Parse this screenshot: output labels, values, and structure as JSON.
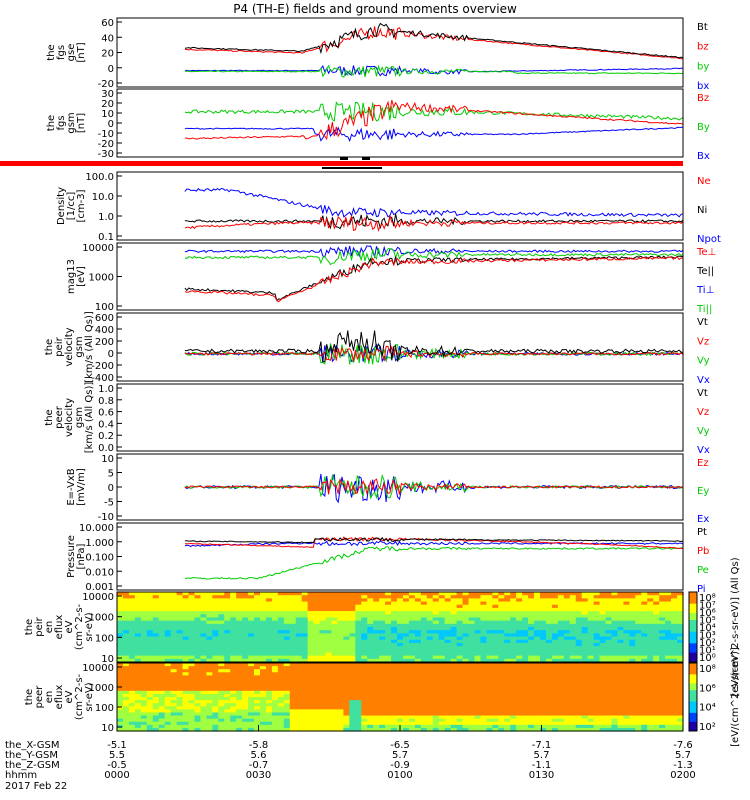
{
  "title": "P4 (TH-E) fields and ground moments overview",
  "date": "2017 Feb 22",
  "panels": [
    {
      "id": "fgs_mag",
      "ylabel": [
        "the",
        "fgs",
        "gse",
        "[nT]"
      ],
      "ticks": [
        "60",
        "40",
        "20",
        "0",
        "-20"
      ],
      "ylim": [
        -20,
        60
      ],
      "legend": [
        {
          "name": "Bt",
          "color": "#000000"
        },
        {
          "name": "bz",
          "color": "#ff0000"
        },
        {
          "name": "by",
          "color": "#00cc00"
        },
        {
          "name": "bx",
          "color": "#0000ff"
        }
      ]
    },
    {
      "id": "fgs_gsm",
      "ylabel": [
        "the",
        "fgs",
        "gsm",
        "[nT]"
      ],
      "ticks": [
        "30",
        "20",
        "10",
        "0",
        "-10",
        "-20",
        "-30"
      ],
      "ylim": [
        -30,
        30
      ],
      "legend": [
        {
          "name": "Bz",
          "color": "#ff0000"
        },
        {
          "name": "By",
          "color": "#00cc00"
        },
        {
          "name": "Bx",
          "color": "#0000ff"
        }
      ]
    },
    {
      "id": "density",
      "ylabel": [
        "Density",
        "[1/cc]",
        "[cm-3]"
      ],
      "ticks": [
        "100.0",
        "10.0",
        "1.0",
        "0.1"
      ],
      "log": true,
      "legend": [
        {
          "name": "Ne",
          "color": "#ff0000"
        },
        {
          "name": "Ni",
          "color": "#000000"
        },
        {
          "name": "Npot",
          "color": "#0000ff"
        }
      ]
    },
    {
      "id": "temp",
      "ylabel": [
        "mag13",
        "[eV]"
      ],
      "ticks": [
        "10000",
        "1000",
        "100"
      ],
      "log": true,
      "legend": [
        {
          "name": "Te⊥",
          "color": "#ff0000"
        },
        {
          "name": "Te||",
          "color": "#000000"
        },
        {
          "name": "Ti⊥",
          "color": "#0000ff"
        },
        {
          "name": "Ti||",
          "color": "#00cc00"
        }
      ]
    },
    {
      "id": "peir_vel",
      "ylabel": [
        "the",
        "peir",
        "velocity",
        "gsm",
        "[km/s (All Qs)]"
      ],
      "ticks": [
        "600",
        "400",
        "200",
        "0",
        "-200",
        "-400"
      ],
      "ylim": [
        -400,
        600
      ],
      "legend": [
        {
          "name": "Vt",
          "color": "#000000"
        },
        {
          "name": "Vz",
          "color": "#ff0000"
        },
        {
          "name": "Vy",
          "color": "#00cc00"
        },
        {
          "name": "Vx",
          "color": "#0000ff"
        }
      ]
    },
    {
      "id": "peer_vel",
      "ylabel": [
        "the",
        "peer",
        "velocity",
        "gsm",
        "[km/s (All Qs)]"
      ],
      "ticks": [
        "1.0",
        "0.8",
        "0.6",
        "0.4",
        "0.2",
        "0.0"
      ],
      "ylim": [
        0,
        1
      ],
      "legend": [
        {
          "name": "Vt",
          "color": "#000000"
        },
        {
          "name": "Vz",
          "color": "#ff0000"
        },
        {
          "name": "Vy",
          "color": "#00cc00"
        },
        {
          "name": "Vx",
          "color": "#0000ff"
        }
      ]
    },
    {
      "id": "efield",
      "ylabel": [
        "E=-VxB",
        "[mV/m]"
      ],
      "ticks": [
        "10",
        "5",
        "0",
        "-5",
        "-10"
      ],
      "ylim": [
        -10,
        10
      ],
      "legend": [
        {
          "name": "Ez",
          "color": "#ff0000"
        },
        {
          "name": "Ey",
          "color": "#00cc00"
        },
        {
          "name": "Ex",
          "color": "#0000ff"
        }
      ]
    },
    {
      "id": "pressure",
      "ylabel": [
        "Pressure",
        "[nPa]"
      ],
      "ticks": [
        "10.000",
        "1.000",
        "0.100",
        "0.010",
        "0.001"
      ],
      "log": true,
      "legend": [
        {
          "name": "Pt",
          "color": "#000000"
        },
        {
          "name": "Pb",
          "color": "#ff0000"
        },
        {
          "name": "Pe",
          "color": "#00cc00"
        },
        {
          "name": "Pi",
          "color": "#0000ff"
        }
      ]
    },
    {
      "id": "peir_spec",
      "ylabel": [
        "the",
        "peir",
        "en",
        "eflux",
        "eV",
        "(cm^2-s-",
        "sr-eV)"
      ],
      "ticks": [
        "10000",
        "1000",
        "100",
        "10"
      ],
      "log": true,
      "colorbar": [
        "10⁸",
        "10⁷",
        "10⁶",
        "10⁵",
        "10⁴",
        "10³",
        "10²",
        "10¹",
        "10⁰"
      ],
      "colorbar_label": "[eV/(cm^2-s-sr-eV)] (All Qs)"
    },
    {
      "id": "peer_spec",
      "ylabel": [
        "the",
        "peer",
        "en",
        "eflux",
        "eV",
        "(cm^2-s-",
        "sr-eV)"
      ],
      "ticks": [
        "10000",
        "1000",
        "100",
        "10"
      ],
      "log": true,
      "colorbar": [
        "10⁸",
        "10⁶",
        "10⁴",
        "10²"
      ],
      "colorbar_label": "[eV/(cm^2-s-sr-eV)]"
    }
  ],
  "bottom_labels": [
    "the_X-GSM",
    "the_Y-GSM",
    "the_Z-GSM",
    "hhmm"
  ],
  "bottom_ticks": [
    {
      "x": "-5.1",
      "y": "5.5",
      "z": "-0.5",
      "t": "0000"
    },
    {
      "x": "-5.8",
      "y": "5.6",
      "z": "-0.7",
      "t": "0030"
    },
    {
      "x": "-6.5",
      "y": "5.7",
      "z": "-0.9",
      "t": "0100"
    },
    {
      "x": "-7.1",
      "y": "5.7",
      "z": "-1.1",
      "t": "0130"
    },
    {
      "x": "-7.6",
      "y": "5.7",
      "z": "-1.3",
      "t": "0200"
    }
  ],
  "chart_data": [
    {
      "type": "line",
      "title": "P4 (TH-E) fields and ground moments overview",
      "ylabel": "the fgs gse [nT]",
      "ylim": [
        -20,
        60
      ],
      "x": [
        "0000",
        "0030",
        "0100",
        "0130",
        "0200"
      ],
      "series": [
        {
          "name": "Bt",
          "values": [
            28,
            22,
            45,
            32,
            14
          ]
        },
        {
          "name": "bz",
          "values": [
            26,
            20,
            44,
            31,
            13
          ]
        },
        {
          "name": "by",
          "values": [
            -2,
            -3,
            -4,
            -3,
            -4
          ]
        },
        {
          "name": "bx",
          "values": [
            -1,
            -1,
            -3,
            -2,
            2
          ]
        }
      ]
    },
    {
      "type": "line",
      "ylabel": "the fgs gsm [nT]",
      "ylim": [
        -30,
        30
      ],
      "x": [
        "0000",
        "0030",
        "0100",
        "0130",
        "0200"
      ],
      "series": [
        {
          "name": "Bz",
          "values": [
            -15,
            -12,
            15,
            5,
            -2
          ]
        },
        {
          "name": "By",
          "values": [
            10,
            11,
            10,
            6,
            3
          ]
        },
        {
          "name": "Bx",
          "values": [
            -5,
            -4,
            -10,
            -9,
            -4
          ]
        }
      ]
    },
    {
      "type": "line",
      "ylabel": "Density [1/cc]",
      "yscale": "log",
      "x": [
        "0000",
        "0030",
        "0100",
        "0130",
        "0200"
      ],
      "series": [
        {
          "name": "Ne",
          "values": [
            0.1,
            0.5,
            0.4,
            0.35,
            0.3
          ]
        },
        {
          "name": "Ni",
          "values": [
            0.4,
            0.7,
            0.5,
            0.5,
            0.6
          ]
        },
        {
          "name": "Npot",
          "values": [
            20,
            3,
            1.4,
            1.5,
            1.0
          ]
        }
      ]
    },
    {
      "type": "line",
      "ylabel": "mag13 [eV]",
      "yscale": "log",
      "x": [
        "0000",
        "0030",
        "0100",
        "0130",
        "0200"
      ],
      "series": [
        {
          "name": "Te⊥",
          "values": [
            250,
            100,
            3000,
            4000,
            5000
          ]
        },
        {
          "name": "Te||",
          "values": [
            300,
            120,
            3500,
            4500,
            5500
          ]
        },
        {
          "name": "Ti⊥",
          "values": [
            9000,
            8000,
            8500,
            9000,
            9000
          ]
        },
        {
          "name": "Ti||",
          "values": [
            5000,
            6000,
            6000,
            6500,
            7000
          ]
        }
      ]
    },
    {
      "type": "line",
      "ylabel": "the peir velocity gsm [km/s (All Qs)]",
      "ylim": [
        -400,
        600
      ],
      "x": [
        "0000",
        "0030",
        "0100",
        "0130",
        "0200"
      ],
      "series": [
        {
          "name": "Vt",
          "values": [
            30,
            80,
            100,
            60,
            50
          ]
        },
        {
          "name": "Vz",
          "values": [
            0,
            10,
            0,
            0,
            0
          ]
        },
        {
          "name": "Vy",
          "values": [
            0,
            -20,
            0,
            0,
            0
          ]
        },
        {
          "name": "Vx",
          "values": [
            0,
            -10,
            0,
            0,
            0
          ]
        }
      ]
    },
    {
      "type": "line",
      "ylabel": "the peer velocity gsm [km/s (All Qs)]",
      "ylim": [
        0,
        1
      ],
      "x": [
        "0000",
        "0030",
        "0100",
        "0130",
        "0200"
      ],
      "series": []
    },
    {
      "type": "line",
      "ylabel": "E=-VxB [mV/m]",
      "ylim": [
        -10,
        10
      ],
      "x": [
        "0000",
        "0030",
        "0100",
        "0130",
        "0200"
      ],
      "series": [
        {
          "name": "Ez",
          "values": [
            0,
            0,
            0,
            0,
            0
          ]
        },
        {
          "name": "Ey",
          "values": [
            0,
            0,
            0,
            0,
            0
          ]
        },
        {
          "name": "Ex",
          "values": [
            0,
            0,
            0,
            0,
            0
          ]
        }
      ]
    },
    {
      "type": "line",
      "ylabel": "Pressure [nPa]",
      "yscale": "log",
      "x": [
        "0000",
        "0030",
        "0100",
        "0130",
        "0200"
      ],
      "series": [
        {
          "name": "Pt",
          "values": [
            0.9,
            0.6,
            1.2,
            0.9,
            0.8
          ]
        },
        {
          "name": "Pb",
          "values": [
            0.7,
            0.4,
            1.0,
            0.6,
            0.25
          ]
        },
        {
          "name": "Pe",
          "values": [
            0.005,
            0.01,
            0.3,
            0.3,
            0.2
          ]
        },
        {
          "name": "Pi",
          "values": [
            0.3,
            0.5,
            0.6,
            0.5,
            0.6
          ]
        }
      ]
    },
    {
      "type": "heatmap",
      "ylabel": "the peir en eflux eV (cm^2-s-sr-eV)",
      "yscale": "log",
      "ylim": [
        10,
        10000
      ]
    },
    {
      "type": "heatmap",
      "ylabel": "the peer en eflux eV (cm^2-s-sr-eV)",
      "yscale": "log",
      "ylim": [
        10,
        10000
      ]
    }
  ]
}
